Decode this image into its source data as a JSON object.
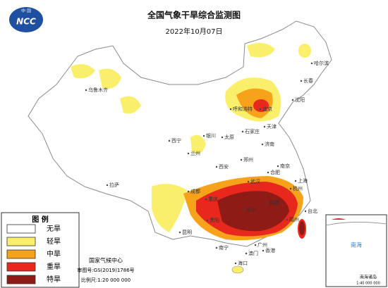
{
  "header": {
    "title": "全国气象干旱综合监测图",
    "date": "2022年10月07日",
    "logo_top": "中 国",
    "logo_main": "NCC"
  },
  "legend": {
    "title": "图 例",
    "items": [
      {
        "label": "无旱",
        "color": "#ffffff"
      },
      {
        "label": "轻旱",
        "color": "#f9ef6a"
      },
      {
        "label": "中旱",
        "color": "#f7a21b"
      },
      {
        "label": "重旱",
        "color": "#e8281c"
      },
      {
        "label": "特旱",
        "color": "#8e1b16"
      }
    ]
  },
  "footer": {
    "org": "国家气候中心",
    "approval": "审图号:GS(2019)1786号",
    "scale": "比例尺:1:20 000 000"
  },
  "inset": {
    "label": "南海",
    "caption": "南海诸岛",
    "scale": "1:40 000 000"
  },
  "cities": [
    "哈尔滨",
    "长春",
    "沈阳",
    "乌鲁木齐",
    "呼和浩特",
    "北京",
    "天津",
    "石家庄",
    "太原",
    "济南",
    "银川",
    "西宁",
    "兰州",
    "郑州",
    "西安",
    "合肥",
    "南京",
    "上海",
    "杭州",
    "武汉",
    "成都",
    "重庆",
    "拉萨",
    "长沙",
    "南昌",
    "福州",
    "贵阳",
    "昆明",
    "南宁",
    "广州",
    "香港",
    "澳门",
    "海口",
    "台北"
  ]
}
